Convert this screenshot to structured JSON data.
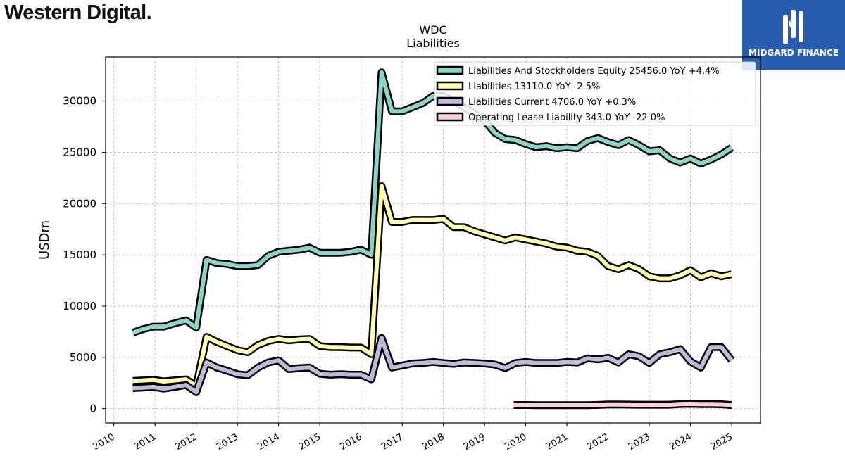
{
  "brand": {
    "name": "Western Digital",
    "registered_mark": "."
  },
  "badge": {
    "label": "MIDGARD FINANCE",
    "icon": "midgard-logo-icon",
    "color": "#2a5cad"
  },
  "chart_data": {
    "type": "line",
    "title": "WDC",
    "subtitle": "Liabilities",
    "ylabel": "USDm",
    "xlabel": "",
    "xlim": [
      2009.8,
      2025.7
    ],
    "ylim": [
      -1400,
      34300
    ],
    "grid": true,
    "legend_position": "top-right",
    "yticks": [
      0,
      5000,
      10000,
      15000,
      20000,
      25000,
      30000
    ],
    "xticks": [
      2010,
      2011,
      2012,
      2013,
      2014,
      2015,
      2016,
      2017,
      2018,
      2019,
      2020,
      2021,
      2022,
      2023,
      2024,
      2025
    ],
    "series": [
      {
        "name": "Liabilities And Stockholders Equity",
        "legend": "Liabilities And Stockholders Equity  25456.0 YoY +4.4%",
        "color": "#8dd3c7",
        "x": [
          2010.46,
          2010.71,
          2010.96,
          2011.21,
          2011.46,
          2011.75,
          2012.0,
          2012.25,
          2012.5,
          2012.75,
          2013.0,
          2013.25,
          2013.5,
          2013.75,
          2014.0,
          2014.25,
          2014.5,
          2014.75,
          2015.0,
          2015.25,
          2015.5,
          2015.75,
          2016.0,
          2016.25,
          2016.5,
          2016.75,
          2017.0,
          2017.25,
          2017.5,
          2017.75,
          2018.0,
          2018.25,
          2018.5,
          2018.75,
          2019.0,
          2019.25,
          2019.5,
          2019.75,
          2020.0,
          2020.25,
          2020.5,
          2020.75,
          2021.0,
          2021.25,
          2021.5,
          2021.75,
          2022.0,
          2022.25,
          2022.5,
          2022.75,
          2023.0,
          2023.25,
          2023.5,
          2023.75,
          2024.0,
          2024.25,
          2024.5,
          2024.75,
          2025.0
        ],
        "values": [
          7400,
          7750,
          8000,
          8000,
          8300,
          8600,
          7900,
          14500,
          14200,
          14100,
          13900,
          13900,
          14000,
          14900,
          15300,
          15400,
          15500,
          15700,
          15200,
          15200,
          15200,
          15300,
          15500,
          15000,
          32800,
          29000,
          29000,
          29400,
          29800,
          30500,
          30500,
          30000,
          29400,
          28800,
          28100,
          26900,
          26300,
          26200,
          25800,
          25500,
          25600,
          25400,
          25500,
          25400,
          26100,
          26400,
          26000,
          25700,
          26200,
          25700,
          25100,
          25200,
          24400,
          24000,
          24400,
          23900,
          24300,
          24800,
          25456
        ]
      },
      {
        "name": "Liabilities",
        "legend": "Liabilities  13110.0 YoY -2.5%",
        "color": "#ffffb3",
        "x": [
          2010.46,
          2010.71,
          2010.96,
          2011.21,
          2011.46,
          2011.75,
          2012.0,
          2012.25,
          2012.5,
          2012.75,
          2013.0,
          2013.25,
          2013.5,
          2013.75,
          2014.0,
          2014.25,
          2014.5,
          2014.75,
          2015.0,
          2015.25,
          2015.5,
          2015.75,
          2016.0,
          2016.25,
          2016.5,
          2016.75,
          2017.0,
          2017.25,
          2017.5,
          2017.75,
          2018.0,
          2018.25,
          2018.5,
          2018.75,
          2019.0,
          2019.25,
          2019.5,
          2019.75,
          2020.0,
          2020.25,
          2020.5,
          2020.75,
          2021.0,
          2021.25,
          2021.5,
          2021.75,
          2022.0,
          2022.25,
          2022.5,
          2022.75,
          2023.0,
          2023.25,
          2023.5,
          2023.75,
          2024.0,
          2024.25,
          2024.5,
          2024.75,
          2025.0
        ],
        "values": [
          2700,
          2750,
          2800,
          2650,
          2750,
          2850,
          2200,
          7000,
          6500,
          6100,
          5700,
          5500,
          6200,
          6600,
          6800,
          6650,
          6750,
          6800,
          6100,
          6000,
          6000,
          5950,
          5950,
          5300,
          21700,
          18200,
          18200,
          18400,
          18400,
          18400,
          18500,
          17700,
          17700,
          17300,
          17000,
          16700,
          16400,
          16700,
          16500,
          16300,
          16100,
          15800,
          15700,
          15400,
          15300,
          14900,
          13900,
          13600,
          14000,
          13600,
          12900,
          12700,
          12700,
          13000,
          13500,
          12800,
          13200,
          12900,
          13110
        ]
      },
      {
        "name": "Liabilities Current",
        "legend": "Liabilities Current  4706.0 YoY +0.3%",
        "color": "#bebada",
        "x": [
          2010.46,
          2010.71,
          2010.96,
          2011.21,
          2011.46,
          2011.75,
          2012.0,
          2012.25,
          2012.5,
          2012.75,
          2013.0,
          2013.25,
          2013.5,
          2013.75,
          2014.0,
          2014.25,
          2014.5,
          2014.75,
          2015.0,
          2015.25,
          2015.5,
          2015.75,
          2016.0,
          2016.25,
          2016.5,
          2016.75,
          2017.0,
          2017.25,
          2017.5,
          2017.75,
          2018.0,
          2018.25,
          2018.5,
          2018.75,
          2019.0,
          2019.25,
          2019.5,
          2019.75,
          2020.0,
          2020.25,
          2020.5,
          2020.75,
          2021.0,
          2021.25,
          2021.5,
          2021.75,
          2022.0,
          2022.25,
          2022.5,
          2022.75,
          2023.0,
          2023.25,
          2023.5,
          2023.75,
          2024.0,
          2024.25,
          2024.5,
          2024.75,
          2025.0
        ],
        "values": [
          2000,
          2050,
          2100,
          1950,
          2100,
          2300,
          1600,
          4500,
          4000,
          3700,
          3350,
          3250,
          4000,
          4500,
          4700,
          3850,
          3950,
          4000,
          3400,
          3300,
          3350,
          3300,
          3300,
          2850,
          6900,
          4000,
          4200,
          4400,
          4450,
          4550,
          4450,
          4350,
          4500,
          4450,
          4400,
          4300,
          3950,
          4450,
          4550,
          4450,
          4450,
          4450,
          4550,
          4500,
          4900,
          4800,
          4950,
          4500,
          5300,
          5100,
          4450,
          5300,
          5500,
          5800,
          4600,
          4000,
          6000,
          6000,
          4706
        ]
      },
      {
        "name": "Operating Lease Liability",
        "legend": "Operating Lease Liability  343.0 YoY -22.0%",
        "color": "#fccde5",
        "x": [
          2019.71,
          2020.0,
          2020.25,
          2020.5,
          2020.75,
          2021.0,
          2021.25,
          2021.5,
          2021.75,
          2022.0,
          2022.25,
          2022.5,
          2022.75,
          2023.0,
          2023.25,
          2023.5,
          2023.75,
          2024.0,
          2024.25,
          2024.5,
          2024.75,
          2025.0
        ],
        "values": [
          350,
          350,
          340,
          340,
          340,
          340,
          340,
          330,
          360,
          400,
          400,
          390,
          380,
          380,
          380,
          380,
          450,
          460,
          440,
          430,
          420,
          343
        ]
      }
    ]
  }
}
